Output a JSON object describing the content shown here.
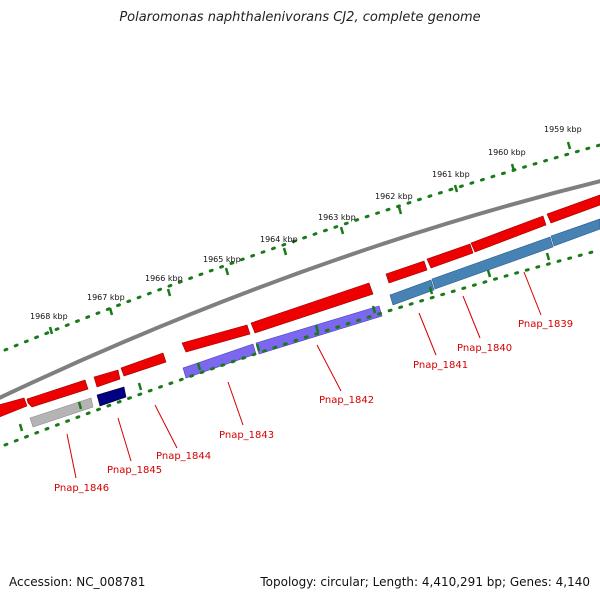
{
  "title": "Polaromonas naphthalenivorans CJ2, complete genome",
  "footer": {
    "accession": "Accession: NC_008781",
    "summary": "Topology: circular; Length: 4,410,291 bp; Genes: 4,140"
  },
  "colors": {
    "backbone": "#7f7f7f",
    "forward_feature": "#ee0000",
    "tick": "#1a7a1a",
    "label": "#d40000",
    "pnap_1846": "#b4b4b4",
    "pnap_1845": "#000080",
    "pnap_1843_1842": "#7b68ee",
    "pnap_1841_1839": "#4682b4"
  },
  "scale_labels": [
    "1959 kbp",
    "1960 kbp",
    "1961 kbp",
    "1962 kbp",
    "1963 kbp",
    "1964 kbp",
    "1965 kbp",
    "1966 kbp",
    "1967 kbp",
    "1968 kbp"
  ],
  "gene_labels": [
    "Pnap_1839",
    "Pnap_1840",
    "Pnap_1841",
    "Pnap_1842",
    "Pnap_1843",
    "Pnap_1844",
    "Pnap_1845",
    "Pnap_1846"
  ]
}
